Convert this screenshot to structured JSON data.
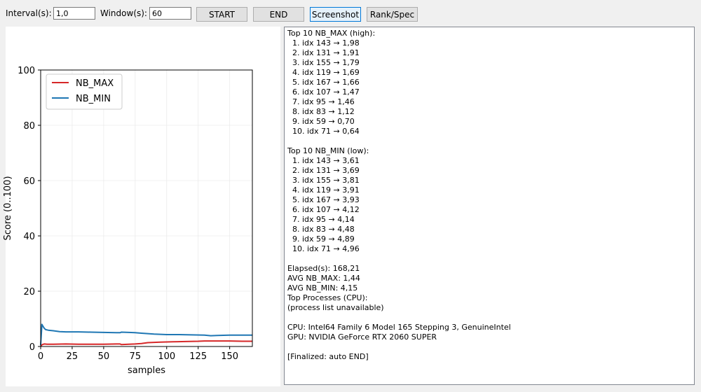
{
  "toolbar": {
    "interval_label": "Interval(s):",
    "interval_value": "1,0",
    "window_label": "Window(s):",
    "window_value": "60",
    "start_label": "START",
    "end_label": "END",
    "screenshot_label": "Screenshot",
    "rankspec_label": "Rank/Spec"
  },
  "chart_data": {
    "type": "line",
    "xlabel": "samples",
    "ylabel": "Score (0..100)",
    "xlim": [
      0,
      168
    ],
    "ylim": [
      0,
      100
    ],
    "xticks": [
      0,
      25,
      50,
      75,
      100,
      125,
      150
    ],
    "yticks": [
      0,
      20,
      40,
      60,
      80,
      100
    ],
    "grid": true,
    "legend": "top-left",
    "series": [
      {
        "name": "NB_MAX",
        "color": "#d62728",
        "x": [
          0,
          1,
          2,
          3,
          5,
          10,
          20,
          30,
          40,
          50,
          60,
          63,
          64,
          70,
          75,
          80,
          85,
          95,
          105,
          115,
          125,
          130,
          140,
          150,
          160,
          168
        ],
        "y": [
          0.2,
          0.6,
          0.8,
          0.9,
          0.8,
          0.8,
          0.9,
          0.8,
          0.8,
          0.8,
          0.9,
          0.9,
          0.7,
          0.8,
          0.9,
          1.1,
          1.4,
          1.6,
          1.7,
          1.8,
          1.9,
          2.0,
          2.0,
          2.0,
          1.9,
          1.9
        ]
      },
      {
        "name": "NB_MIN",
        "color": "#1f77b4",
        "x": [
          0,
          1,
          2,
          3,
          4,
          6,
          10,
          15,
          20,
          30,
          40,
          50,
          60,
          63,
          64,
          70,
          75,
          80,
          90,
          100,
          110,
          120,
          130,
          135,
          140,
          150,
          160,
          168
        ],
        "y": [
          0.5,
          8.0,
          7.2,
          6.5,
          6.1,
          5.9,
          5.7,
          5.4,
          5.3,
          5.3,
          5.2,
          5.1,
          5.0,
          5.0,
          5.2,
          5.1,
          5.0,
          4.8,
          4.5,
          4.3,
          4.3,
          4.2,
          4.1,
          3.9,
          4.0,
          4.1,
          4.1,
          4.1
        ]
      }
    ]
  },
  "panel": {
    "lines": [
      "Top 10 NB_MAX (high):",
      "  1. idx 143 → 1,98",
      "  2. idx 131 → 1,91",
      "  3. idx 155 → 1,79",
      "  4. idx 119 → 1,69",
      "  5. idx 167 → 1,66",
      "  6. idx 107 → 1,47",
      "  7. idx 95 → 1,46",
      "  8. idx 83 → 1,12",
      "  9. idx 59 → 0,70",
      "  10. idx 71 → 0,64",
      "",
      "Top 10 NB_MIN (low):",
      "  1. idx 143 → 3,61",
      "  2. idx 131 → 3,69",
      "  3. idx 155 → 3,81",
      "  4. idx 119 → 3,91",
      "  5. idx 167 → 3,93",
      "  6. idx 107 → 4,12",
      "  7. idx 95 → 4,14",
      "  8. idx 83 → 4,48",
      "  9. idx 59 → 4,89",
      "  10. idx 71 → 4,96",
      "",
      "Elapsed(s): 168,21",
      "AVG NB_MAX: 1,44",
      "AVG NB_MIN: 4,15",
      "Top Processes (CPU):",
      "(process list unavailable)",
      "",
      "CPU: Intel64 Family 6 Model 165 Stepping 3, GenuineIntel",
      "GPU: NVIDIA GeForce RTX 2060 SUPER",
      "",
      "[Finalized: auto END]"
    ]
  }
}
